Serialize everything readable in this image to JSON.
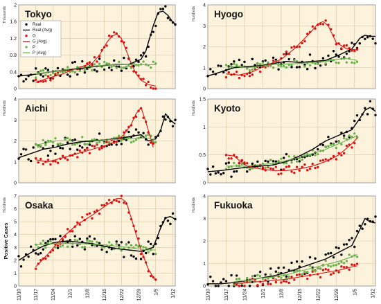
{
  "figure": {
    "y_axis_label": "Positive Cases",
    "background": "#fdf3dc",
    "grid_color": "#d4c4a0"
  },
  "legend": {
    "entries": [
      {
        "label": "Real",
        "kind": "dot",
        "color": "#000000"
      },
      {
        "label": "Real (Avg)",
        "kind": "line",
        "color": "#000000"
      },
      {
        "label": "G",
        "kind": "dot",
        "color": "#dd1111"
      },
      {
        "label": "G (Avg)",
        "kind": "line",
        "color": "#dd1111"
      },
      {
        "label": "P",
        "kind": "dot",
        "color": "#6ab04c"
      },
      {
        "label": "P (Avg)",
        "kind": "line",
        "color": "#6ab04c"
      }
    ]
  },
  "colors": {
    "real": "#000000",
    "g": "#dd1111",
    "p": "#6ab04c"
  },
  "x_ticks": {
    "left": [
      "11/10",
      "11/17",
      "11/24",
      "12/1",
      "12/8",
      "12/15",
      "12/22",
      "12/29",
      "1/5",
      "1/12"
    ],
    "right": [
      "11/10",
      "11/17",
      "11/24",
      "12/1",
      "12/8",
      "12/15",
      "12/22",
      "12/29",
      "1/5",
      "1/12"
    ]
  },
  "chart_data": [
    {
      "type": "line",
      "title": "Tokyo",
      "unit": "Thousands",
      "ylim": [
        0,
        2
      ],
      "yticks": [
        "0",
        "0.4",
        "0.8",
        "1.2",
        "1.6",
        "2"
      ],
      "series": [
        {
          "name": "Real (Avg)",
          "x": [
            0,
            5,
            10,
            15,
            20,
            25,
            30,
            35,
            40,
            45,
            50,
            52,
            55,
            57,
            59,
            61,
            63,
            64
          ],
          "values": [
            0.3,
            0.33,
            0.37,
            0.42,
            0.45,
            0.48,
            0.52,
            0.55,
            0.58,
            0.58,
            0.7,
            0.9,
            1.5,
            1.82,
            1.85,
            1.75,
            1.58,
            1.55
          ]
        },
        {
          "name": "G (Avg)",
          "x": [
            7,
            12,
            18,
            24,
            30,
            33,
            36,
            38,
            40,
            42,
            44,
            46,
            48,
            50,
            53,
            56
          ],
          "values": [
            0.15,
            0.25,
            0.35,
            0.5,
            0.6,
            0.8,
            1.1,
            1.25,
            1.3,
            1.2,
            0.9,
            0.6,
            0.35,
            0.2,
            0.1,
            0.06
          ]
        },
        {
          "name": "P (Avg)",
          "x": [
            7,
            15,
            25,
            35,
            45,
            53,
            56
          ],
          "values": [
            0.35,
            0.42,
            0.5,
            0.56,
            0.58,
            0.57,
            0.57
          ]
        }
      ]
    },
    {
      "type": "line",
      "title": "Hyogo",
      "unit": "Hundreds",
      "ylim": [
        0,
        4
      ],
      "yticks": [
        "0",
        "1",
        "2",
        "3",
        "4"
      ],
      "series": [
        {
          "name": "Real (Avg)",
          "x": [
            0,
            5,
            10,
            15,
            20,
            25,
            30,
            35,
            40,
            45,
            50,
            55,
            58,
            60,
            62,
            64
          ],
          "values": [
            0.6,
            0.8,
            1.0,
            1.05,
            1.1,
            1.2,
            1.3,
            1.25,
            1.3,
            1.35,
            1.6,
            1.9,
            2.4,
            2.55,
            2.5,
            2.5
          ]
        },
        {
          "name": "G (Avg)",
          "x": [
            7,
            12,
            17,
            22,
            28,
            33,
            37,
            40,
            42,
            44,
            46,
            49,
            53,
            57
          ],
          "values": [
            0.7,
            0.65,
            0.8,
            1.1,
            1.4,
            1.9,
            2.4,
            2.8,
            3.1,
            3.2,
            3.0,
            2.2,
            1.9,
            1.85
          ]
        },
        {
          "name": "P (Avg)",
          "x": [
            7,
            15,
            25,
            35,
            45,
            52,
            57
          ],
          "values": [
            1.1,
            1.0,
            1.15,
            1.2,
            1.3,
            1.45,
            1.35
          ]
        }
      ]
    },
    {
      "type": "line",
      "title": "Aichi",
      "unit": "Hundreds",
      "ylim": [
        0,
        4
      ],
      "yticks": [
        "0",
        "1",
        "2",
        "3",
        "4"
      ],
      "series": [
        {
          "name": "Real (Avg)",
          "x": [
            0,
            5,
            10,
            15,
            20,
            25,
            30,
            35,
            40,
            45,
            50,
            53,
            56,
            58,
            60,
            62,
            64
          ],
          "values": [
            1.2,
            1.4,
            1.6,
            1.7,
            1.85,
            1.95,
            2.0,
            2.05,
            2.1,
            2.2,
            2.3,
            2.0,
            2.1,
            2.5,
            3.3,
            3.0,
            2.8
          ]
        },
        {
          "name": "G (Avg)",
          "x": [
            7,
            12,
            18,
            24,
            30,
            36,
            40,
            43,
            46,
            48,
            50,
            52,
            55
          ],
          "values": [
            1.1,
            1.0,
            1.2,
            1.4,
            1.6,
            1.8,
            2.0,
            2.3,
            2.8,
            3.3,
            3.6,
            2.9,
            1.7
          ]
        },
        {
          "name": "P (Avg)",
          "x": [
            7,
            15,
            25,
            35,
            45,
            52,
            56
          ],
          "values": [
            1.8,
            2.0,
            2.0,
            2.05,
            2.1,
            2.15,
            2.05
          ]
        }
      ]
    },
    {
      "type": "line",
      "title": "Kyoto",
      "unit": "Hundreds",
      "ylim": [
        0,
        1.5
      ],
      "yticks": [
        "0",
        "0.5",
        "1",
        "1.5"
      ],
      "series": [
        {
          "name": "Real (Avg)",
          "x": [
            0,
            5,
            10,
            15,
            20,
            25,
            30,
            35,
            40,
            45,
            50,
            55,
            58,
            60,
            62,
            64
          ],
          "values": [
            0.2,
            0.22,
            0.25,
            0.28,
            0.3,
            0.32,
            0.38,
            0.48,
            0.6,
            0.75,
            0.85,
            0.95,
            1.15,
            1.3,
            1.35,
            1.28
          ]
        },
        {
          "name": "G (Avg)",
          "x": [
            7,
            10,
            12,
            15,
            20,
            25,
            30,
            35,
            40,
            45,
            50,
            55,
            57
          ],
          "values": [
            0.5,
            0.48,
            0.4,
            0.3,
            0.25,
            0.22,
            0.22,
            0.25,
            0.3,
            0.38,
            0.5,
            0.7,
            0.8
          ]
        },
        {
          "name": "P (Avg)",
          "x": [
            7,
            15,
            25,
            35,
            45,
            55,
            57
          ],
          "values": [
            0.3,
            0.3,
            0.35,
            0.45,
            0.6,
            0.8,
            0.85
          ]
        }
      ]
    },
    {
      "type": "line",
      "title": "Osaka",
      "unit": "Hundreds",
      "ylim": [
        0,
        7
      ],
      "yticks": [
        "0",
        "1",
        "2",
        "3",
        "4",
        "5",
        "6",
        "7"
      ],
      "series": [
        {
          "name": "Real (Avg)",
          "x": [
            0,
            5,
            10,
            15,
            20,
            25,
            30,
            35,
            40,
            45,
            50,
            55,
            58,
            60,
            62,
            64
          ],
          "values": [
            2.0,
            2.6,
            3.1,
            3.4,
            3.5,
            3.4,
            3.3,
            3.1,
            2.9,
            2.8,
            2.7,
            3.0,
            4.5,
            5.3,
            5.4,
            5.2
          ]
        },
        {
          "name": "G (Avg)",
          "x": [
            7,
            12,
            18,
            24,
            30,
            36,
            40,
            42,
            44,
            46,
            48,
            50,
            53,
            56
          ],
          "values": [
            1.5,
            2.5,
            3.8,
            4.8,
            5.5,
            6.3,
            6.8,
            6.8,
            6.5,
            5.3,
            4.0,
            2.8,
            1.3,
            0.4
          ]
        },
        {
          "name": "P (Avg)",
          "x": [
            7,
            15,
            25,
            35,
            45,
            52,
            56
          ],
          "values": [
            3.2,
            3.3,
            3.3,
            3.2,
            3.0,
            2.8,
            2.8
          ]
        }
      ]
    },
    {
      "type": "line",
      "title": "Fukuoka",
      "unit": "Hundreds",
      "ylim": [
        0,
        4
      ],
      "yticks": [
        "0",
        "1",
        "2",
        "3",
        "4"
      ],
      "series": [
        {
          "name": "Real (Avg)",
          "x": [
            0,
            5,
            10,
            15,
            20,
            25,
            30,
            35,
            40,
            45,
            50,
            55,
            58,
            60,
            62,
            64
          ],
          "values": [
            0.1,
            0.1,
            0.15,
            0.25,
            0.35,
            0.45,
            0.6,
            0.8,
            1.0,
            1.2,
            1.5,
            1.8,
            2.5,
            3.0,
            2.85,
            2.8
          ]
        },
        {
          "name": "G (Avg)",
          "x": [
            10,
            15,
            20,
            25,
            30,
            35,
            40,
            45,
            50,
            55,
            57
          ],
          "values": [
            0.1,
            0.15,
            0.2,
            0.25,
            0.3,
            0.4,
            0.5,
            0.6,
            0.7,
            0.85,
            0.9
          ]
        },
        {
          "name": "P (Avg)",
          "x": [
            10,
            15,
            20,
            25,
            30,
            35,
            40,
            45,
            50,
            55,
            57
          ],
          "values": [
            0.2,
            0.25,
            0.35,
            0.4,
            0.5,
            0.65,
            0.8,
            0.95,
            1.1,
            1.3,
            1.4
          ]
        }
      ]
    }
  ]
}
